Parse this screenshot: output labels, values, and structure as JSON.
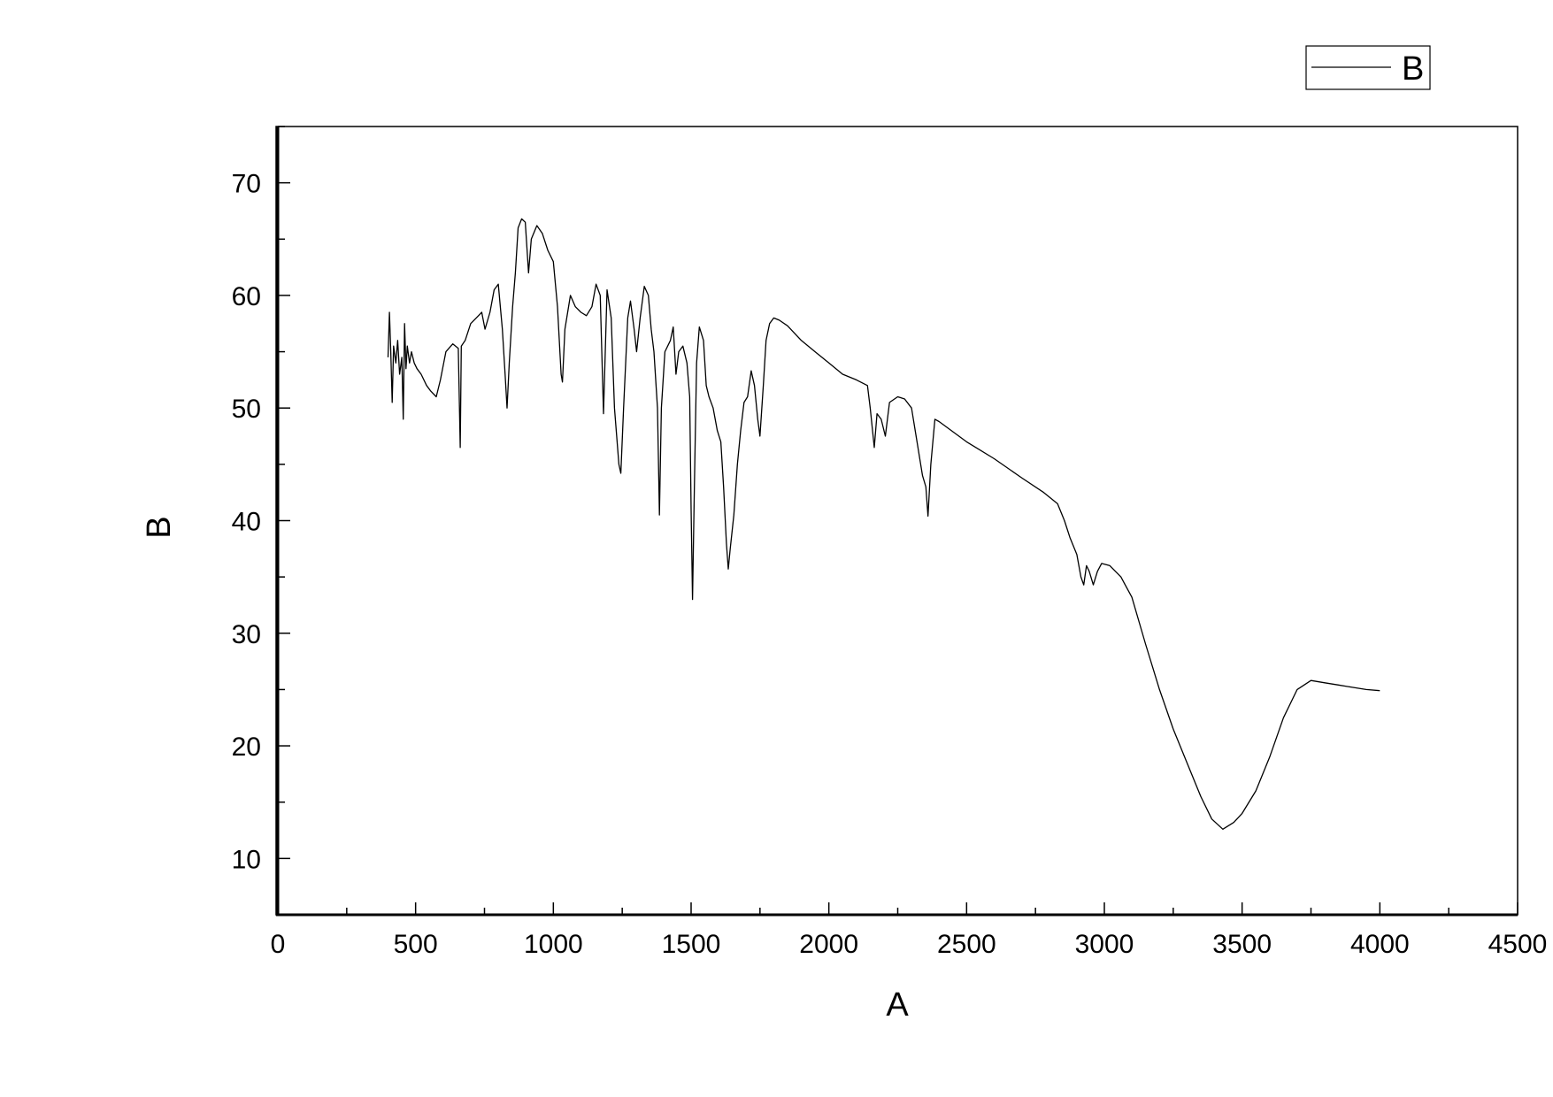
{
  "chart_data": {
    "type": "line",
    "title": "",
    "xlabel": "A",
    "ylabel": "B",
    "xlim": [
      0,
      4500
    ],
    "ylim": [
      5,
      75
    ],
    "xticks": [
      0,
      500,
      1000,
      1500,
      2000,
      2500,
      3000,
      3500,
      4000,
      4500
    ],
    "yticks": [
      10,
      20,
      30,
      40,
      50,
      60,
      70
    ],
    "xtick_labels": [
      "0",
      "500",
      "1000",
      "1500",
      "2000",
      "2500",
      "3000",
      "3500",
      "4000",
      "4500"
    ],
    "ytick_labels": [
      "10",
      "20",
      "30",
      "40",
      "50",
      "60",
      "70"
    ],
    "x_minor_step": 250,
    "y_minor_step": 5,
    "grid": false,
    "legend_position": "top-right, above plot",
    "line_color": "#000000",
    "series": [
      {
        "name": "B",
        "points": [
          [
            400,
            54.5
          ],
          [
            405,
            58.5
          ],
          [
            410,
            55
          ],
          [
            415,
            50.5
          ],
          [
            420,
            55.5
          ],
          [
            428,
            54
          ],
          [
            435,
            56
          ],
          [
            442,
            53
          ],
          [
            450,
            54.5
          ],
          [
            455,
            49
          ],
          [
            460,
            57.5
          ],
          [
            465,
            53.5
          ],
          [
            470,
            55.5
          ],
          [
            478,
            54
          ],
          [
            485,
            55
          ],
          [
            495,
            54
          ],
          [
            505,
            53.5
          ],
          [
            520,
            53
          ],
          [
            540,
            52
          ],
          [
            555,
            51.5
          ],
          [
            575,
            51
          ],
          [
            590,
            52.5
          ],
          [
            610,
            55
          ],
          [
            635,
            55.7
          ],
          [
            655,
            55.3
          ],
          [
            662,
            46.5
          ],
          [
            666,
            55.5
          ],
          [
            680,
            56
          ],
          [
            700,
            57.5
          ],
          [
            720,
            58
          ],
          [
            740,
            58.5
          ],
          [
            752,
            57
          ],
          [
            770,
            58.5
          ],
          [
            785,
            60.5
          ],
          [
            800,
            61
          ],
          [
            815,
            57
          ],
          [
            825,
            53
          ],
          [
            832,
            50
          ],
          [
            840,
            54
          ],
          [
            852,
            59
          ],
          [
            862,
            62
          ],
          [
            872,
            66
          ],
          [
            885,
            66.8
          ],
          [
            898,
            66.5
          ],
          [
            910,
            62
          ],
          [
            920,
            65
          ],
          [
            940,
            66.2
          ],
          [
            960,
            65.5
          ],
          [
            980,
            64
          ],
          [
            1000,
            63
          ],
          [
            1015,
            59
          ],
          [
            1028,
            53
          ],
          [
            1033,
            52.3
          ],
          [
            1042,
            57
          ],
          [
            1062,
            60
          ],
          [
            1080,
            59
          ],
          [
            1100,
            58.5
          ],
          [
            1120,
            58.2
          ],
          [
            1140,
            59
          ],
          [
            1155,
            61
          ],
          [
            1170,
            60
          ],
          [
            1182,
            49.5
          ],
          [
            1195,
            60.5
          ],
          [
            1210,
            58
          ],
          [
            1222,
            50
          ],
          [
            1238,
            45
          ],
          [
            1245,
            44.2
          ],
          [
            1255,
            50
          ],
          [
            1270,
            58
          ],
          [
            1280,
            59.5
          ],
          [
            1293,
            57
          ],
          [
            1302,
            55
          ],
          [
            1315,
            58
          ],
          [
            1330,
            60.8
          ],
          [
            1345,
            60
          ],
          [
            1355,
            57
          ],
          [
            1365,
            55
          ],
          [
            1378,
            50
          ],
          [
            1385,
            40.5
          ],
          [
            1392,
            50
          ],
          [
            1405,
            55
          ],
          [
            1425,
            56
          ],
          [
            1435,
            57.2
          ],
          [
            1445,
            53
          ],
          [
            1455,
            55
          ],
          [
            1470,
            55.5
          ],
          [
            1485,
            54
          ],
          [
            1495,
            51
          ],
          [
            1500,
            41
          ],
          [
            1505,
            33
          ],
          [
            1512,
            43
          ],
          [
            1520,
            54
          ],
          [
            1530,
            57.2
          ],
          [
            1545,
            56
          ],
          [
            1555,
            52
          ],
          [
            1565,
            51
          ],
          [
            1580,
            50
          ],
          [
            1595,
            48
          ],
          [
            1608,
            47
          ],
          [
            1618,
            43
          ],
          [
            1628,
            38
          ],
          [
            1635,
            35.7
          ],
          [
            1642,
            37.5
          ],
          [
            1655,
            40.5
          ],
          [
            1668,
            45
          ],
          [
            1680,
            48
          ],
          [
            1692,
            50.5
          ],
          [
            1705,
            51
          ],
          [
            1718,
            53.3
          ],
          [
            1730,
            52
          ],
          [
            1742,
            49
          ],
          [
            1750,
            47.5
          ],
          [
            1762,
            52
          ],
          [
            1772,
            56
          ],
          [
            1785,
            57.5
          ],
          [
            1800,
            58
          ],
          [
            1820,
            57.8
          ],
          [
            1850,
            57.3
          ],
          [
            1900,
            56
          ],
          [
            1950,
            55
          ],
          [
            2000,
            54
          ],
          [
            2050,
            53
          ],
          [
            2100,
            52.5
          ],
          [
            2140,
            52
          ],
          [
            2150,
            50
          ],
          [
            2165,
            46.5
          ],
          [
            2175,
            49.5
          ],
          [
            2190,
            49
          ],
          [
            2205,
            47.5
          ],
          [
            2220,
            50.5
          ],
          [
            2250,
            51
          ],
          [
            2275,
            50.8
          ],
          [
            2300,
            50
          ],
          [
            2320,
            47
          ],
          [
            2340,
            44
          ],
          [
            2352,
            43
          ],
          [
            2360,
            40.4
          ],
          [
            2370,
            45
          ],
          [
            2385,
            49
          ],
          [
            2400,
            48.8
          ],
          [
            2500,
            47
          ],
          [
            2600,
            45.5
          ],
          [
            2700,
            43.8
          ],
          [
            2780,
            42.5
          ],
          [
            2830,
            41.5
          ],
          [
            2855,
            40
          ],
          [
            2875,
            38.5
          ],
          [
            2900,
            37
          ],
          [
            2915,
            35
          ],
          [
            2925,
            34.3
          ],
          [
            2935,
            36
          ],
          [
            2945,
            35.5
          ],
          [
            2960,
            34.3
          ],
          [
            2975,
            35.5
          ],
          [
            2990,
            36.2
          ],
          [
            3020,
            36
          ],
          [
            3060,
            35
          ],
          [
            3100,
            33.2
          ],
          [
            3150,
            29
          ],
          [
            3200,
            25
          ],
          [
            3250,
            21.5
          ],
          [
            3300,
            18.5
          ],
          [
            3350,
            15.5
          ],
          [
            3390,
            13.5
          ],
          [
            3430,
            12.6
          ],
          [
            3470,
            13.2
          ],
          [
            3500,
            14
          ],
          [
            3550,
            16
          ],
          [
            3600,
            19
          ],
          [
            3650,
            22.5
          ],
          [
            3700,
            25
          ],
          [
            3750,
            25.8
          ],
          [
            3800,
            25.6
          ],
          [
            3850,
            25.4
          ],
          [
            3900,
            25.2
          ],
          [
            3950,
            25
          ],
          [
            4000,
            24.9
          ]
        ]
      }
    ]
  }
}
